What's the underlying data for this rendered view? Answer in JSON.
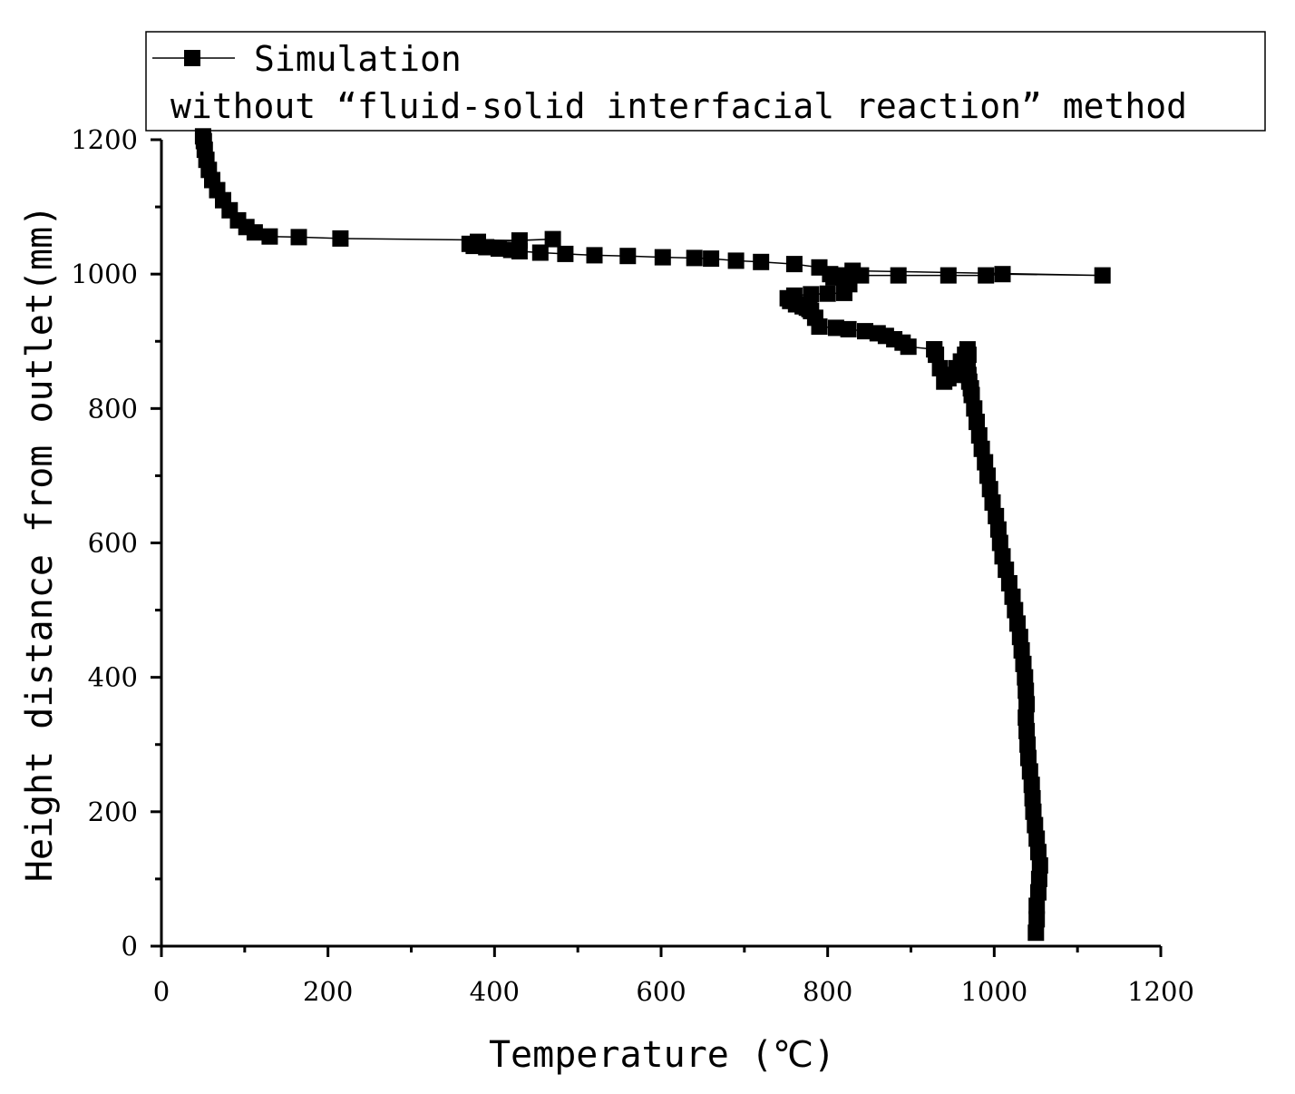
{
  "chart_data": {
    "type": "line",
    "xlabel": "Temperature (℃)",
    "ylabel": "Height distance from outlet(mm)",
    "xlim": [
      0,
      1200
    ],
    "ylim": [
      0,
      1200
    ],
    "xticks": [
      "0",
      "200",
      "400",
      "600",
      "800",
      "1000",
      "1200"
    ],
    "yticks": [
      "0",
      "200",
      "400",
      "600",
      "800",
      "1000",
      "1200"
    ],
    "grid": false,
    "legend_placement": "top",
    "legend_lines": [
      "Simulation",
      "without “fluid-solid interfacial reaction” method"
    ],
    "series": [
      {
        "name": "Simulation",
        "marker": "square",
        "color": "#000000",
        "x": [
          1050,
          1051,
          1051,
          1053,
          1054,
          1055,
          1053,
          1051,
          1049,
          1047,
          1046,
          1045,
          1043,
          1041,
          1040,
          1039,
          1038,
          1039,
          1038,
          1037,
          1035,
          1033,
          1031,
          1028,
          1025,
          1022,
          1018,
          1014,
          1010,
          1007,
          1005,
          1002,
          998,
          995,
          992,
          989,
          985,
          982,
          979,
          976,
          973,
          972,
          970,
          969,
          968,
          968,
          969,
          968,
          965,
          960,
          955,
          950,
          945,
          940,
          935,
          930,
          928,
          928,
          897,
          890,
          880,
          870,
          860,
          845,
          825,
          810,
          790,
          785,
          780,
          778,
          775,
          770,
          762,
          755,
          752,
          760,
          780,
          800,
          820,
          826,
          822,
          812,
          803,
          807,
          825,
          840,
          885,
          945,
          990,
          1010,
          1130,
          830,
          790,
          760,
          720,
          690,
          660,
          640,
          602,
          560,
          520,
          485,
          455,
          430,
          420,
          405,
          390,
          375,
          370,
          380,
          470,
          430,
          215,
          165,
          130,
          112,
          102,
          92,
          82,
          74,
          67,
          61,
          57,
          54,
          52,
          51,
          50
        ],
        "y": [
          20,
          40,
          60,
          80,
          100,
          120,
          140,
          160,
          180,
          200,
          220,
          240,
          260,
          280,
          300,
          320,
          340,
          360,
          380,
          400,
          420,
          440,
          460,
          480,
          500,
          520,
          540,
          560,
          580,
          600,
          620,
          640,
          660,
          680,
          700,
          720,
          740,
          760,
          780,
          800,
          820,
          830,
          840,
          850,
          860,
          870,
          880,
          888,
          880,
          870,
          860,
          850,
          845,
          840,
          860,
          880,
          888,
          888,
          892,
          898,
          903,
          908,
          912,
          915,
          918,
          920,
          922,
          935,
          945,
          948,
          950,
          952,
          955,
          960,
          964,
          968,
          970,
          971,
          972,
          985,
          995,
          998,
          1000,
          995,
          997,
          998,
          998,
          998,
          998,
          1000,
          998,
          1005,
          1010,
          1015,
          1018,
          1020,
          1023,
          1024,
          1025,
          1027,
          1028,
          1030,
          1032,
          1034,
          1036,
          1038,
          1040,
          1042,
          1045,
          1048,
          1052,
          1050,
          1053,
          1055,
          1056,
          1062,
          1070,
          1080,
          1095,
          1110,
          1125,
          1140,
          1155,
          1170,
          1185,
          1198,
          1205
        ]
      }
    ]
  }
}
